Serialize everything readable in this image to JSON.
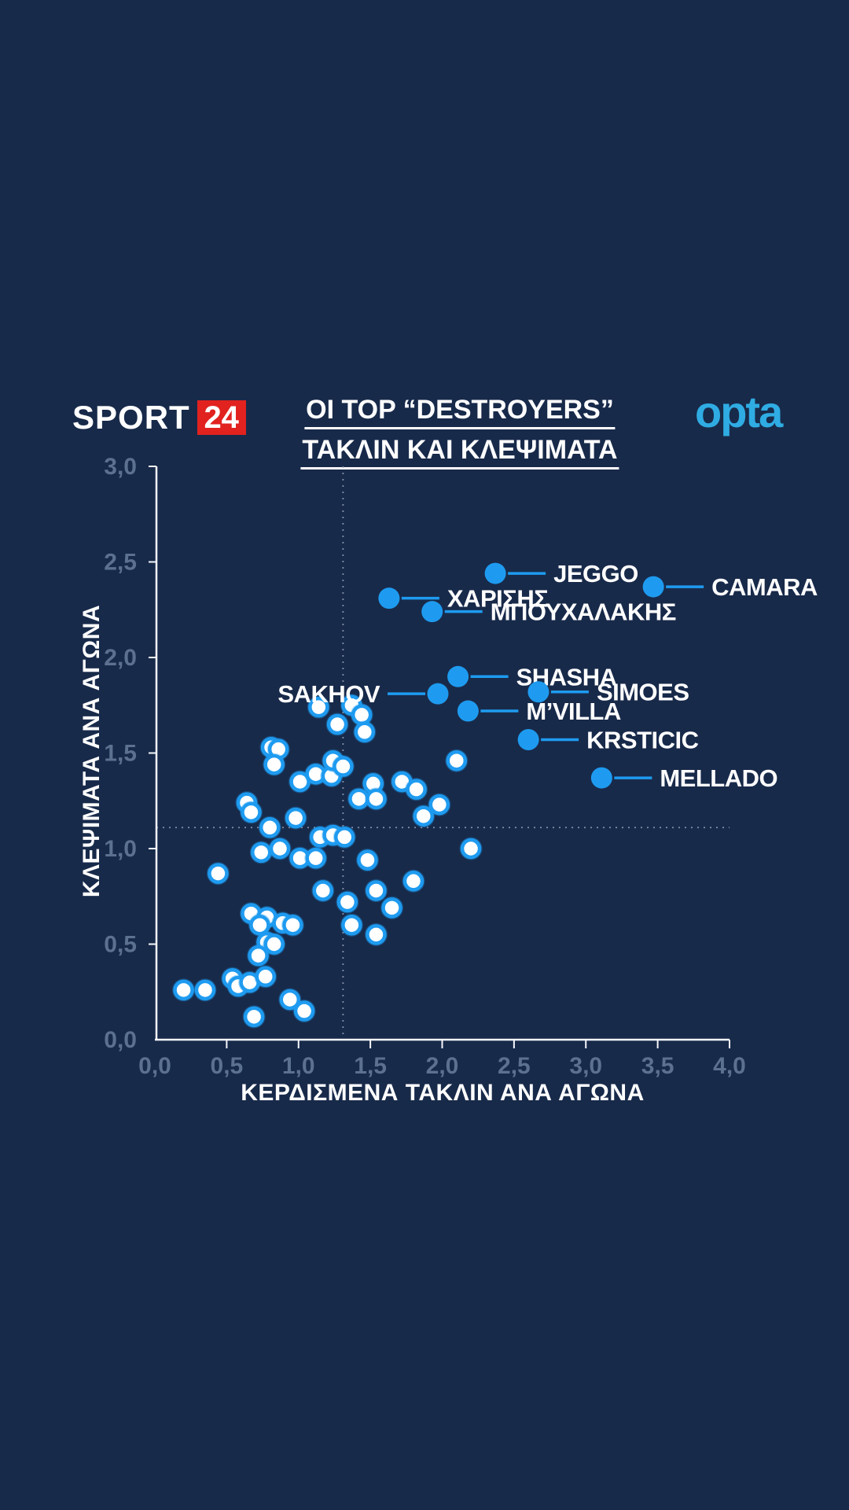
{
  "header": {
    "brand": {
      "sport": "SPORT",
      "num": "24"
    },
    "title_line1": "ΟΙ TOP “DESTROYERS”",
    "title_line2": "ΤΑΚΛΙΝ ΚΑΙ ΚΛΕΨΙΜΑΤΑ",
    "opta": "opta"
  },
  "colors": {
    "background": "#182A4A",
    "point_blue": "#1E9BF0",
    "white": "#FFFFFF",
    "axis_text": "#5C708F",
    "dashed_line": "#93A1B8",
    "brand_red": "#E1221F",
    "opta_blue": "#2FACE3"
  },
  "chart_data": {
    "type": "scatter",
    "xlabel": "ΚΕΡΔΙΣΜΕΝΑ ΤΑΚΛΙΝ ΑΝΑ ΑΓΩΝΑ",
    "ylabel": "ΚΛΕΨΙΜΑΤΑ ΑΝΑ ΑΓΩΝΑ",
    "xlim": [
      0,
      4
    ],
    "ylim": [
      0,
      3
    ],
    "x_tick_values": [
      0,
      0.5,
      1,
      1.5,
      2,
      2.5,
      3,
      3.5,
      4
    ],
    "x_tick_labels": [
      "0,0",
      "0,5",
      "1,0",
      "1,5",
      "2,0",
      "2,5",
      "3,0",
      "3,5",
      "4,0"
    ],
    "y_tick_values": [
      0,
      0.5,
      1,
      1.5,
      2,
      2.5,
      3
    ],
    "y_tick_labels": [
      "0,0",
      "0,5",
      "1,0",
      "1,5",
      "2,0",
      "2,5",
      "3,0"
    ],
    "grid": false,
    "reference_lines": {
      "x": 1.31,
      "y": 1.11
    },
    "labeled_points": [
      {
        "name": "JEGGO",
        "x": 2.37,
        "y": 2.44,
        "side": "right"
      },
      {
        "name": "ΧΑΡΙΣΗΣ",
        "x": 1.63,
        "y": 2.31,
        "side": "right"
      },
      {
        "name": "ΜΠΟΥΧΑΛΑΚΗΣ",
        "x": 1.93,
        "y": 2.24,
        "side": "right"
      },
      {
        "name": "CAMARA",
        "x": 3.47,
        "y": 2.37,
        "side": "right"
      },
      {
        "name": "SHASHA",
        "x": 2.11,
        "y": 1.9,
        "side": "right"
      },
      {
        "name": "SAKHOV",
        "x": 1.97,
        "y": 1.81,
        "side": "left"
      },
      {
        "name": "SIMOES",
        "x": 2.67,
        "y": 1.82,
        "side": "right"
      },
      {
        "name": "M’VILLA",
        "x": 2.18,
        "y": 1.72,
        "side": "right"
      },
      {
        "name": "KRSTICIC",
        "x": 2.6,
        "y": 1.57,
        "side": "right"
      },
      {
        "name": "MELLADO",
        "x": 3.11,
        "y": 1.37,
        "side": "right"
      }
    ],
    "points": [
      [
        1.14,
        1.74
      ],
      [
        1.37,
        1.75
      ],
      [
        1.44,
        1.7
      ],
      [
        1.27,
        1.65
      ],
      [
        1.46,
        1.61
      ],
      [
        0.81,
        1.53
      ],
      [
        0.86,
        1.52
      ],
      [
        0.83,
        1.44
      ],
      [
        2.1,
        1.46
      ],
      [
        1.01,
        1.35
      ],
      [
        1.12,
        1.39
      ],
      [
        1.23,
        1.38
      ],
      [
        1.24,
        1.46
      ],
      [
        1.31,
        1.43
      ],
      [
        1.52,
        1.34
      ],
      [
        1.72,
        1.35
      ],
      [
        1.82,
        1.31
      ],
      [
        1.42,
        1.26
      ],
      [
        1.54,
        1.26
      ],
      [
        1.98,
        1.23
      ],
      [
        1.87,
        1.17
      ],
      [
        0.64,
        1.24
      ],
      [
        0.67,
        1.19
      ],
      [
        0.8,
        1.11
      ],
      [
        0.98,
        1.16
      ],
      [
        1.15,
        1.06
      ],
      [
        1.24,
        1.07
      ],
      [
        1.32,
        1.06
      ],
      [
        0.74,
        0.98
      ],
      [
        0.87,
        1.0
      ],
      [
        1.01,
        0.95
      ],
      [
        1.12,
        0.95
      ],
      [
        1.48,
        0.94
      ],
      [
        0.44,
        0.87
      ],
      [
        1.17,
        0.78
      ],
      [
        1.34,
        0.72
      ],
      [
        1.54,
        0.78
      ],
      [
        1.37,
        0.6
      ],
      [
        1.54,
        0.55
      ],
      [
        1.8,
        0.83
      ],
      [
        1.65,
        0.69
      ],
      [
        2.2,
        1.0
      ],
      [
        0.67,
        0.66
      ],
      [
        0.78,
        0.64
      ],
      [
        0.73,
        0.6
      ],
      [
        0.89,
        0.61
      ],
      [
        0.96,
        0.6
      ],
      [
        0.78,
        0.51
      ],
      [
        0.83,
        0.5
      ],
      [
        0.72,
        0.44
      ],
      [
        0.54,
        0.32
      ],
      [
        0.58,
        0.28
      ],
      [
        0.66,
        0.3
      ],
      [
        0.77,
        0.33
      ],
      [
        0.2,
        0.26
      ],
      [
        0.35,
        0.26
      ],
      [
        0.94,
        0.21
      ],
      [
        1.04,
        0.15
      ],
      [
        0.69,
        0.12
      ]
    ]
  }
}
